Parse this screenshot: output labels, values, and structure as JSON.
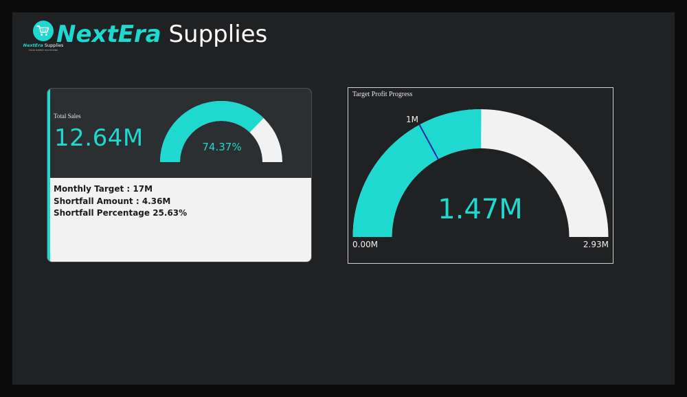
{
  "header": {
    "logo": {
      "icon": "shopping-cart-icon",
      "brand_bold": "NextEra",
      "brand_rest": " Supplies",
      "tagline": "YOUR SUPPLY SOLUTIONS"
    },
    "title_accent": "NextEra",
    "title_rest": " Supplies"
  },
  "colors": {
    "accent": "#1fd8cf",
    "track": "#f2f2f2",
    "panel_dark": "#2c2f31",
    "background": "#202123"
  },
  "total_sales_card": {
    "label": "Total Sales",
    "value": "12.64M",
    "gauge_percent_label": "74.37%",
    "gauge_fraction": 0.7437,
    "stats": [
      "Monthly Target : 17M",
      "Shortfall Amount : 4.36M",
      "Shortfall Percentage 25.63%"
    ]
  },
  "profit_gauge": {
    "title": "Target Profit Progress",
    "value_label": "1.47M",
    "value": 1.47,
    "min": 0,
    "max": 2.93,
    "target": 1,
    "min_label": "0.00M",
    "max_label": "2.93M",
    "target_label": "1M"
  }
}
